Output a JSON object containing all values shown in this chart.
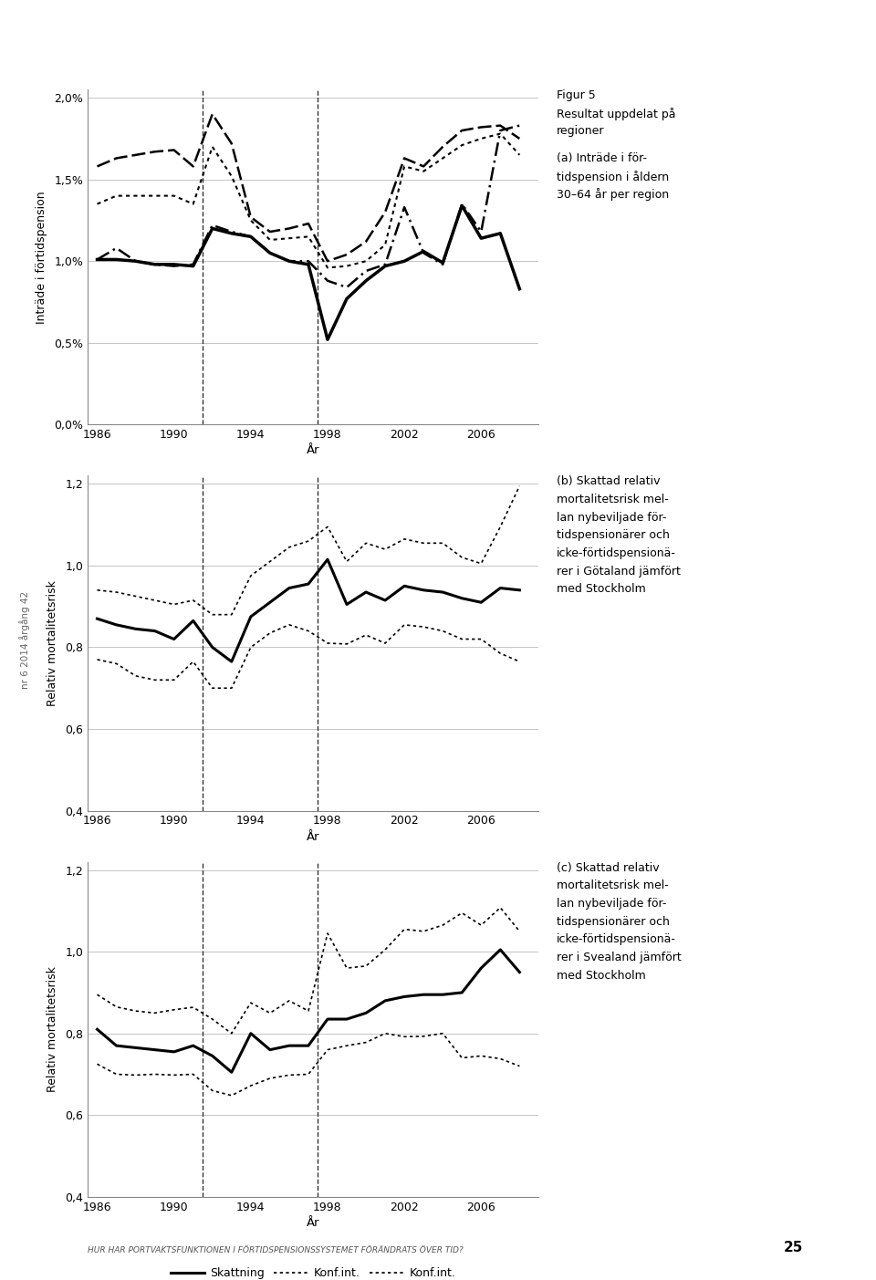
{
  "years": [
    1986,
    1987,
    1988,
    1989,
    1990,
    1991,
    1992,
    1993,
    1994,
    1995,
    1996,
    1997,
    1998,
    1999,
    2000,
    2001,
    2002,
    2003,
    2004,
    2005,
    2006,
    2007,
    2008
  ],
  "chart_a": {
    "norrland": [
      0.0101,
      0.0108,
      0.01,
      0.0098,
      0.0097,
      0.0098,
      0.0122,
      0.0118,
      0.0115,
      0.0105,
      0.01,
      0.01,
      0.0088,
      0.0084,
      0.0094,
      0.0098,
      0.0133,
      0.0105,
      0.0098,
      0.0135,
      0.0118,
      0.018,
      0.0183
    ],
    "svealand": [
      0.0158,
      0.0163,
      0.0165,
      0.0167,
      0.0168,
      0.0158,
      0.019,
      0.0172,
      0.0127,
      0.0118,
      0.012,
      0.0123,
      0.01,
      0.0104,
      0.0112,
      0.013,
      0.0163,
      0.0158,
      0.017,
      0.018,
      0.0182,
      0.0183,
      0.0175
    ],
    "gotaland": [
      0.0135,
      0.014,
      0.014,
      0.014,
      0.014,
      0.0135,
      0.017,
      0.0152,
      0.0125,
      0.0113,
      0.0114,
      0.0115,
      0.0096,
      0.0097,
      0.01,
      0.011,
      0.0158,
      0.0155,
      0.0163,
      0.0171,
      0.0175,
      0.0178,
      0.0165
    ],
    "stockholm": [
      0.0101,
      0.0101,
      0.01,
      0.0098,
      0.0098,
      0.0097,
      0.012,
      0.0117,
      0.0115,
      0.0105,
      0.01,
      0.0098,
      0.0052,
      0.0077,
      0.0088,
      0.0097,
      0.01,
      0.0106,
      0.0099,
      0.0134,
      0.0114,
      0.0117,
      0.0083
    ]
  },
  "chart_b": {
    "skattning": [
      0.87,
      0.855,
      0.845,
      0.84,
      0.82,
      0.865,
      0.8,
      0.765,
      0.875,
      0.91,
      0.945,
      0.955,
      1.015,
      0.905,
      0.935,
      0.915,
      0.95,
      0.94,
      0.935,
      0.92,
      0.91,
      0.945,
      0.94
    ],
    "conf_upper": [
      0.94,
      0.935,
      0.925,
      0.915,
      0.905,
      0.915,
      0.88,
      0.88,
      0.975,
      1.01,
      1.045,
      1.06,
      1.095,
      1.01,
      1.055,
      1.04,
      1.065,
      1.055,
      1.055,
      1.02,
      1.005,
      1.095,
      1.195
    ],
    "conf_lower": [
      0.77,
      0.76,
      0.73,
      0.72,
      0.72,
      0.765,
      0.7,
      0.7,
      0.8,
      0.835,
      0.855,
      0.84,
      0.81,
      0.808,
      0.83,
      0.81,
      0.855,
      0.85,
      0.84,
      0.82,
      0.82,
      0.785,
      0.765
    ]
  },
  "chart_c": {
    "skattning": [
      0.81,
      0.77,
      0.765,
      0.76,
      0.755,
      0.77,
      0.745,
      0.705,
      0.8,
      0.76,
      0.77,
      0.77,
      0.835,
      0.835,
      0.85,
      0.88,
      0.89,
      0.895,
      0.895,
      0.9,
      0.96,
      1.005,
      0.95
    ],
    "conf_upper": [
      0.895,
      0.865,
      0.855,
      0.85,
      0.858,
      0.864,
      0.835,
      0.8,
      0.875,
      0.85,
      0.88,
      0.855,
      1.045,
      0.96,
      0.965,
      1.005,
      1.055,
      1.05,
      1.065,
      1.095,
      1.065,
      1.108,
      1.05
    ],
    "conf_lower": [
      0.725,
      0.7,
      0.698,
      0.7,
      0.698,
      0.7,
      0.66,
      0.648,
      0.672,
      0.69,
      0.698,
      0.7,
      0.76,
      0.77,
      0.778,
      0.8,
      0.792,
      0.793,
      0.8,
      0.74,
      0.745,
      0.738,
      0.72
    ]
  },
  "vline1": 1991.5,
  "vline2": 1997.5,
  "grid_color": "#bbbbbb",
  "annotations_a": {
    "title": "Figur 5",
    "line1": "Resultat uppdelat på",
    "line2": "regioner",
    "line3": "(a) Inträde i för-",
    "line4": "tidspension i åldern",
    "line5": "30–64 år per region"
  },
  "annotations_b": {
    "line1": "(b) Skattad relativ",
    "line2": "mortalitetsrisk mel-",
    "line3": "lan nybeviljade för-",
    "line4": "tidspensionärer och",
    "line5": "icke-förtidspensionä-",
    "line6": "rer i Götaland jämfört",
    "line7": "med Stockholm"
  },
  "annotations_c": {
    "line1": "(c) Skattad relativ",
    "line2": "mortalitetsrisk mel-",
    "line3": "lan nybeviljade för-",
    "line4": "tidspensionärer och",
    "line5": "icke-förtidspensionä-",
    "line6": "rer i Svealand jämfört",
    "line7": "med Stockholm"
  },
  "bottom_text": "HUR HAR PORTVAKTSFUNKTIONEN I FÖRTIDSPENSIONSSYSTEMET FÖRÄNDRATS ÖVER TID?",
  "page_number": "25",
  "side_text": "nr 6 2014 årgång 42"
}
